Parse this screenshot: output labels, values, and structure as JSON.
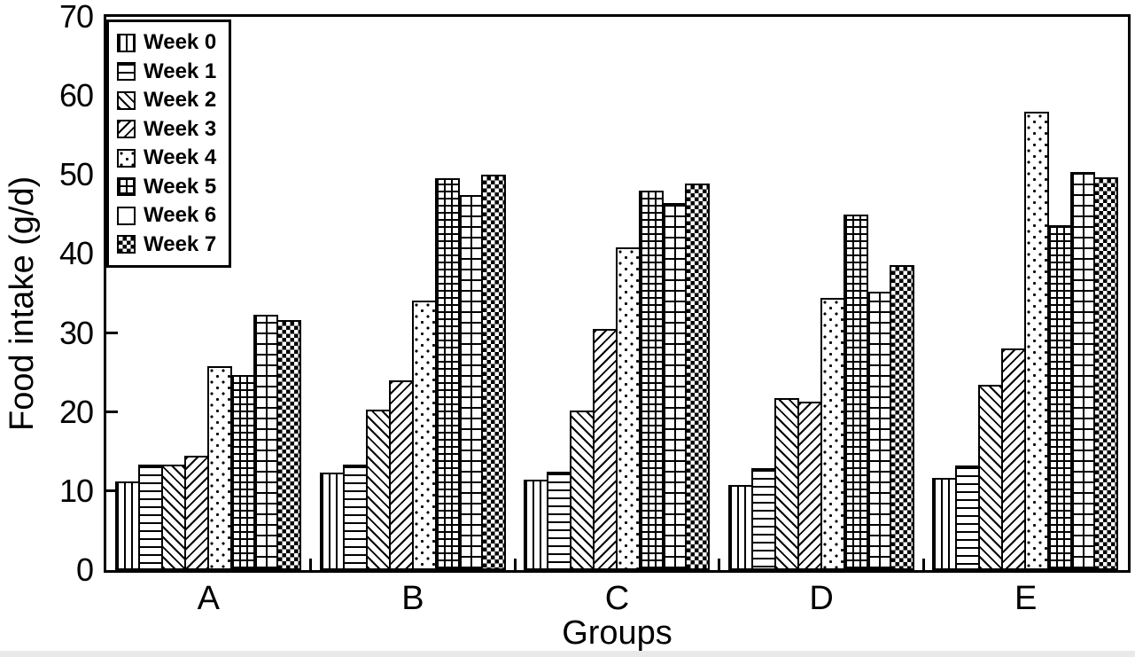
{
  "figure": {
    "background_color": "#ffffff",
    "ink_color": "#000000"
  },
  "chart_data": {
    "type": "bar",
    "title": "",
    "xlabel": "Groups",
    "ylabel": "Food intake (g/d)",
    "ylim": [
      0,
      70
    ],
    "yticks": [
      0,
      10,
      20,
      30,
      40,
      50,
      60,
      70
    ],
    "categories": [
      "A",
      "B",
      "C",
      "D",
      "E"
    ],
    "grid": false,
    "legend_position": "top-left-boxed",
    "series": [
      {
        "name": "Week 0",
        "pattern": "vertical-lines",
        "legend_swatch": "vertical-lines",
        "values": [
          11.2,
          12.3,
          11.4,
          10.8,
          11.7
        ]
      },
      {
        "name": "Week 1",
        "pattern": "horizontal-lines",
        "legend_swatch": "horizontal-lines",
        "values": [
          13.4,
          13.4,
          12.4,
          12.9,
          13.2
        ]
      },
      {
        "name": "Week 2",
        "pattern": "diagonal-backslash",
        "legend_swatch": "diagonal-backslash",
        "values": [
          13.3,
          20.3,
          20.2,
          21.8,
          23.4
        ]
      },
      {
        "name": "Week 3",
        "pattern": "diagonal-slash",
        "legend_swatch": "diagonal-slash",
        "values": [
          14.5,
          24.0,
          30.5,
          21.3,
          28.0
        ]
      },
      {
        "name": "Week 4",
        "pattern": "dots",
        "legend_swatch": "dots",
        "values": [
          25.8,
          34.1,
          40.8,
          34.4,
          58.0
        ]
      },
      {
        "name": "Week 5",
        "pattern": "small-grid",
        "legend_swatch": "small-grid",
        "values": [
          24.7,
          49.6,
          48.0,
          45.0,
          43.6
        ]
      },
      {
        "name": "Week 6",
        "pattern": "large-grid",
        "legend_swatch": "plain",
        "values": [
          32.3,
          47.4,
          46.5,
          35.2,
          50.4
        ]
      },
      {
        "name": "Week 7",
        "pattern": "checkerboard",
        "legend_swatch": "checkerboard",
        "values": [
          31.6,
          50.0,
          48.9,
          38.6,
          49.7
        ]
      }
    ]
  }
}
